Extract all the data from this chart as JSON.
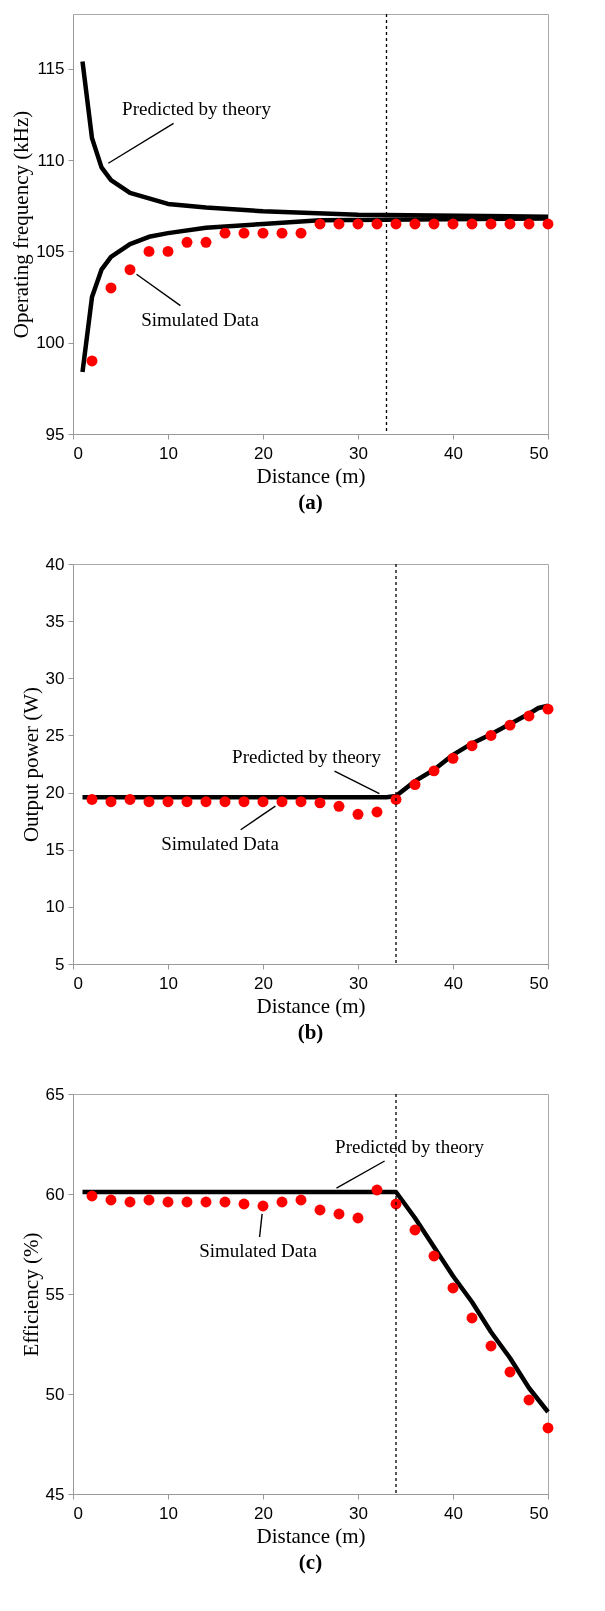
{
  "chart_data": [
    {
      "type": "line",
      "title": "(a)",
      "xlabel": "Distance (m)",
      "ylabel": "Operating frequency (kHz)",
      "xlim": [
        0,
        50
      ],
      "xticks": [
        0,
        10,
        20,
        30,
        40,
        50
      ],
      "ylim": [
        95,
        118
      ],
      "yticks": [
        95,
        100,
        105,
        110,
        115
      ],
      "line_style": "solid",
      "series": [
        {
          "type": "line",
          "color": "#000000",
          "x": [
            1,
            2,
            3,
            4,
            6,
            8,
            10,
            14,
            20,
            30,
            50
          ],
          "values": [
            115.4,
            111.2,
            109.6,
            108.9,
            108.2,
            107.9,
            107.6,
            107.4,
            107.2,
            107.0,
            106.9
          ]
        },
        {
          "type": "line",
          "color": "#000000",
          "x": [
            1,
            2,
            3,
            4,
            6,
            8,
            10,
            14,
            20,
            26,
            50
          ],
          "values": [
            98.4,
            102.5,
            104.0,
            104.7,
            105.4,
            105.8,
            106.0,
            106.3,
            106.5,
            106.7,
            106.8
          ]
        },
        {
          "type": "scatter",
          "marker": "circle",
          "color": "#ff0000",
          "x": [
            2,
            4,
            6,
            8,
            10,
            12,
            14,
            16,
            18,
            20,
            22,
            24,
            26,
            28,
            30,
            32,
            34,
            36,
            38,
            40,
            42,
            44,
            46,
            48,
            50
          ],
          "values": [
            99.0,
            103.0,
            104.0,
            105.0,
            105.0,
            105.5,
            105.5,
            106.0,
            106.0,
            106.0,
            106.0,
            106.0,
            106.5,
            106.5,
            106.5,
            106.5,
            106.5,
            106.5,
            106.5,
            106.5,
            106.5,
            106.5,
            106.5,
            106.5,
            106.5
          ]
        }
      ],
      "ref_lines": [
        {
          "axis": "x",
          "value": 33,
          "color": "#000000",
          "line_style": "dotted"
        }
      ],
      "annotations": [
        {
          "text": "Predicted by theory",
          "x": 3,
          "y": 109.6
        },
        {
          "text": "Simulated Data",
          "x": 6,
          "y": 104.0
        }
      ]
    },
    {
      "type": "line",
      "title": "(b)",
      "xlabel": "Distance (m)",
      "ylabel": "Output power (W)",
      "xlim": [
        0,
        50
      ],
      "xticks": [
        0,
        10,
        20,
        30,
        40,
        50
      ],
      "ylim": [
        5,
        40
      ],
      "yticks": [
        5,
        10,
        15,
        20,
        25,
        30,
        35,
        40
      ],
      "line_style": "solid",
      "series": [
        {
          "type": "line",
          "color": "#000000",
          "x": [
            1,
            33,
            34,
            36,
            38,
            40,
            42,
            44,
            46,
            48,
            49,
            50
          ],
          "values": [
            19.6,
            19.6,
            19.7,
            21.0,
            22.0,
            23.3,
            24.3,
            25.1,
            26.0,
            26.9,
            27.4,
            27.6
          ]
        },
        {
          "type": "scatter",
          "marker": "circle",
          "color": "#ff0000",
          "x": [
            2,
            4,
            6,
            8,
            10,
            12,
            14,
            16,
            18,
            20,
            22,
            24,
            26,
            28,
            30,
            32,
            34,
            36,
            38,
            40,
            42,
            44,
            46,
            48,
            50
          ],
          "values": [
            19.4,
            19.2,
            19.4,
            19.2,
            19.2,
            19.2,
            19.2,
            19.2,
            19.2,
            19.2,
            19.2,
            19.2,
            19.1,
            18.8,
            18.1,
            18.3,
            19.4,
            20.7,
            21.9,
            23.0,
            24.1,
            25.0,
            25.9,
            26.7,
            27.3
          ]
        }
      ],
      "ref_lines": [
        {
          "axis": "x",
          "value": 34,
          "color": "#000000",
          "line_style": "dotted"
        }
      ],
      "annotations": [
        {
          "text": "Predicted by theory",
          "x": 33,
          "y": 19.6
        },
        {
          "text": "Simulated Data",
          "x": 22,
          "y": 19.2
        }
      ]
    },
    {
      "type": "line",
      "title": "(c)",
      "xlabel": "Distance (m)",
      "ylabel": "Efficiency (%)",
      "xlim": [
        0,
        50
      ],
      "xticks": [
        0,
        10,
        20,
        30,
        40,
        50
      ],
      "ylim": [
        45,
        65
      ],
      "yticks": [
        45,
        50,
        55,
        60,
        65
      ],
      "line_style": "solid",
      "series": [
        {
          "type": "line",
          "color": "#000000",
          "x": [
            1,
            34,
            36,
            40,
            42,
            44,
            46,
            48,
            50
          ],
          "values": [
            60.1,
            60.1,
            58.8,
            55.9,
            54.6,
            53.1,
            51.8,
            50.3,
            49.1
          ]
        },
        {
          "type": "scatter",
          "marker": "circle",
          "color": "#ff0000",
          "x": [
            2,
            4,
            6,
            8,
            10,
            12,
            14,
            16,
            18,
            20,
            22,
            24,
            26,
            28,
            30,
            32,
            34,
            36,
            38,
            40,
            42,
            44,
            46,
            48,
            50
          ],
          "values": [
            59.9,
            59.7,
            59.6,
            59.7,
            59.6,
            59.6,
            59.6,
            59.6,
            59.5,
            59.4,
            59.6,
            59.7,
            59.2,
            59.0,
            58.8,
            60.2,
            59.5,
            58.2,
            56.9,
            55.3,
            53.8,
            52.4,
            51.1,
            49.7,
            48.3
          ]
        }
      ],
      "ref_lines": [
        {
          "axis": "x",
          "value": 34,
          "color": "#000000",
          "line_style": "dotted"
        }
      ],
      "annotations": [
        {
          "text": "Predicted by theory",
          "x": 27,
          "y": 60.1
        },
        {
          "text": "Simulated Data",
          "x": 20,
          "y": 59.4
        }
      ]
    }
  ]
}
